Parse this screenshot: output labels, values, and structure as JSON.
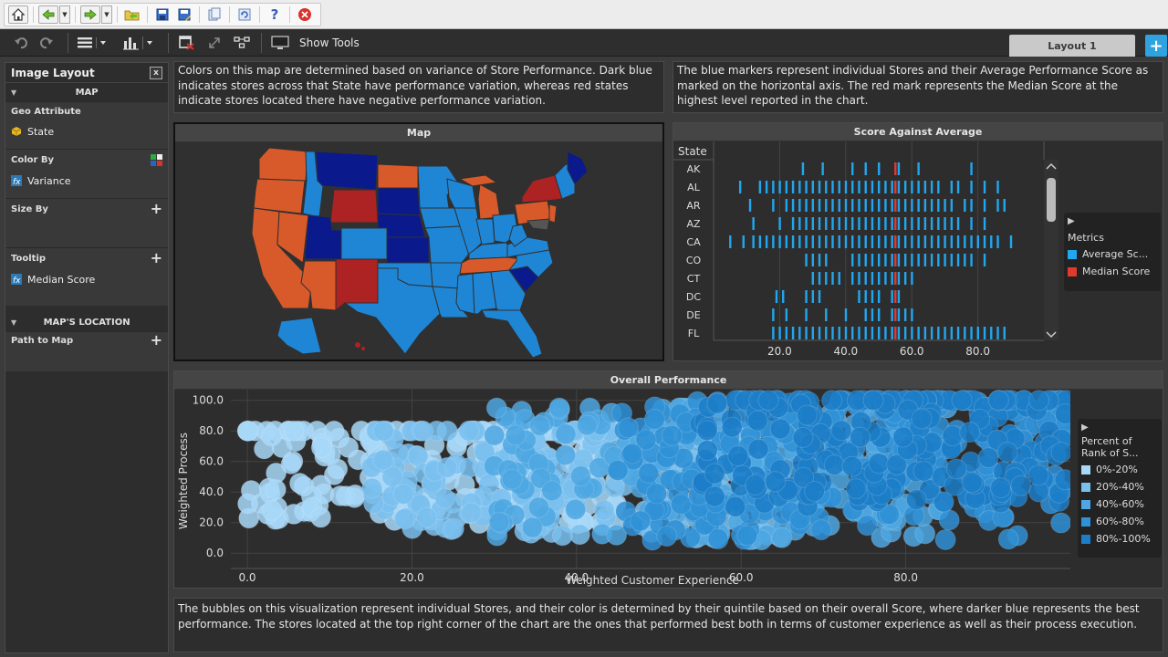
{
  "toolbar": {
    "buttons": [
      "home-icon",
      "back-icon",
      "forward-icon",
      "open-folder-icon",
      "save-icon",
      "save-as-icon",
      "copy-icon",
      "refresh-icon",
      "help-icon",
      "close-icon"
    ],
    "show_tools_label": "Show Tools"
  },
  "tabs": {
    "active": "Layout 1",
    "add": "+"
  },
  "left_panel": {
    "title": "Image Layout",
    "close": "x",
    "map_section": "MAP",
    "geo_attribute_label": "Geo Attribute",
    "geo_attribute_value": "State",
    "color_by_label": "Color By",
    "color_by_value": "Variance",
    "size_by_label": "Size By",
    "tooltip_label": "Tooltip",
    "tooltip_value": "Median Score",
    "location_section": "MAP'S LOCATION",
    "path_to_map_label": "Path to Map"
  },
  "descriptions": {
    "map_text": "Colors on this map are determined based on variance of Store Performance. Dark blue indicates stores across that State have performance variation, whereas red states indicate stores located there have negative performance variation.",
    "score_text": "The blue markers represent individual Stores and their Average Performance Score as marked on the horizontal axis. The red mark represents the Median Score at the highest level reported in the chart.",
    "bubble_text": "The bubbles on this visualization represent individual Stores, and their color is determined by their quintile based on their overall Score, where darker blue represents the best performance. The stores located at the top right corner of the chart are the ones that performed best both in terms of customer experience as well as their process execution."
  },
  "panels": {
    "map_title": "Map",
    "score_title": "Score Against Average",
    "overall_title": "Overall Performance"
  },
  "colors": {
    "dark_blue": "#0a1a8c",
    "mid_blue": "#1f86d6",
    "red": "#ad2222",
    "orange": "#d85a2a",
    "marker_blue": "#22a6ee",
    "median_red": "#e03a2f"
  },
  "score_chart": {
    "column_header": "State",
    "legend_title": "Metrics",
    "legend_items": [
      {
        "label": "Average Sc...",
        "color": "#22a6ee"
      },
      {
        "label": "Median Score",
        "color": "#e03a2f"
      }
    ]
  },
  "chart_data": [
    {
      "type": "scatter",
      "title": "Score Against Average",
      "categories": [
        "AK",
        "AL",
        "AR",
        "AZ",
        "CA",
        "CO",
        "CT",
        "DC",
        "DE",
        "FL"
      ],
      "x_ticks": [
        "20.0",
        "40.0",
        "60.0",
        "80.0"
      ],
      "xlim": [
        0,
        100
      ],
      "grid": true,
      "legend_position": "right",
      "series": [
        {
          "name": "Average Sc...",
          "rows": [
            [
              27,
              33,
              42,
              46,
              50,
              56,
              62,
              78
            ],
            [
              8,
              14,
              16,
              18,
              20,
              22,
              24,
              26,
              28,
              30,
              32,
              34,
              36,
              38,
              40,
              42,
              44,
              46,
              48,
              50,
              52,
              54,
              56,
              58,
              60,
              62,
              64,
              66,
              68,
              72,
              74,
              78,
              82,
              86
            ],
            [
              11,
              18,
              22,
              24,
              26,
              28,
              30,
              32,
              34,
              36,
              38,
              40,
              42,
              44,
              46,
              48,
              50,
              52,
              54,
              56,
              58,
              60,
              62,
              64,
              66,
              68,
              70,
              72,
              76,
              78,
              82,
              86,
              88
            ],
            [
              12,
              20,
              24,
              26,
              28,
              30,
              32,
              34,
              36,
              38,
              40,
              42,
              44,
              46,
              48,
              50,
              52,
              54,
              56,
              58,
              60,
              62,
              64,
              66,
              68,
              70,
              72,
              74,
              78,
              82
            ],
            [
              5,
              9,
              12,
              14,
              16,
              18,
              20,
              22,
              24,
              26,
              28,
              30,
              32,
              34,
              36,
              38,
              40,
              42,
              44,
              46,
              48,
              50,
              52,
              54,
              56,
              58,
              60,
              62,
              64,
              66,
              68,
              70,
              72,
              74,
              76,
              78,
              80,
              82,
              84,
              86,
              90
            ],
            [
              28,
              30,
              32,
              34,
              42,
              44,
              46,
              48,
              50,
              52,
              54,
              56,
              58,
              60,
              62,
              64,
              66,
              68,
              70,
              72,
              74,
              76,
              78,
              82
            ],
            [
              30,
              32,
              34,
              36,
              38,
              42,
              44,
              46,
              48,
              50,
              52,
              54,
              56,
              58,
              60
            ],
            [
              19,
              21,
              28,
              30,
              32,
              44,
              46,
              48,
              50,
              54,
              56
            ],
            [
              18,
              22,
              28,
              34,
              40,
              46,
              48,
              50,
              54,
              56,
              58,
              60
            ],
            [
              18,
              20,
              22,
              24,
              26,
              28,
              30,
              32,
              34,
              36,
              38,
              40,
              42,
              44,
              46,
              48,
              50,
              52,
              54,
              56,
              58,
              60,
              62,
              64,
              66,
              68,
              70,
              72,
              74,
              76,
              78,
              80,
              82,
              84,
              86,
              88
            ]
          ]
        },
        {
          "name": "Median Score",
          "values": [
            55,
            55,
            55,
            55,
            55,
            55,
            55,
            55,
            55,
            55
          ]
        }
      ]
    },
    {
      "type": "scatter",
      "title": "Overall Performance",
      "xlabel": "Weighted Customer Experience",
      "ylabel": "Weighted Process",
      "x_ticks": [
        "0.0",
        "20.0",
        "40.0",
        "60.0",
        "80.0"
      ],
      "y_ticks": [
        "100.0",
        "80.0",
        "60.0",
        "40.0",
        "20.0",
        "0.0"
      ],
      "xlim": [
        -2,
        100
      ],
      "ylim": [
        -10,
        107
      ],
      "grid": true,
      "legend_position": "right",
      "legend_title": "Percent of Rank of S...",
      "series": [
        {
          "name": "0%-20%",
          "color": "#a8d8f8",
          "x_range": [
            0,
            45
          ],
          "y_range": [
            5,
            80
          ],
          "peak_y": 60
        },
        {
          "name": "20%-40%",
          "color": "#7ac0ee",
          "x_range": [
            15,
            65
          ],
          "y_range": [
            0,
            80
          ],
          "peak_y": 55
        },
        {
          "name": "40%-60%",
          "color": "#4ea7e2",
          "x_range": [
            30,
            85
          ],
          "y_range": [
            0,
            95
          ],
          "peak_y": 55
        },
        {
          "name": "60%-80%",
          "color": "#2f91d6",
          "x_range": [
            45,
            100
          ],
          "y_range": [
            5,
            100
          ],
          "peak_y": 55
        },
        {
          "name": "80%-100%",
          "color": "#1c7ec8",
          "x_range": [
            55,
            100
          ],
          "y_range": [
            10,
            100
          ],
          "peak_y": 75
        }
      ]
    }
  ]
}
